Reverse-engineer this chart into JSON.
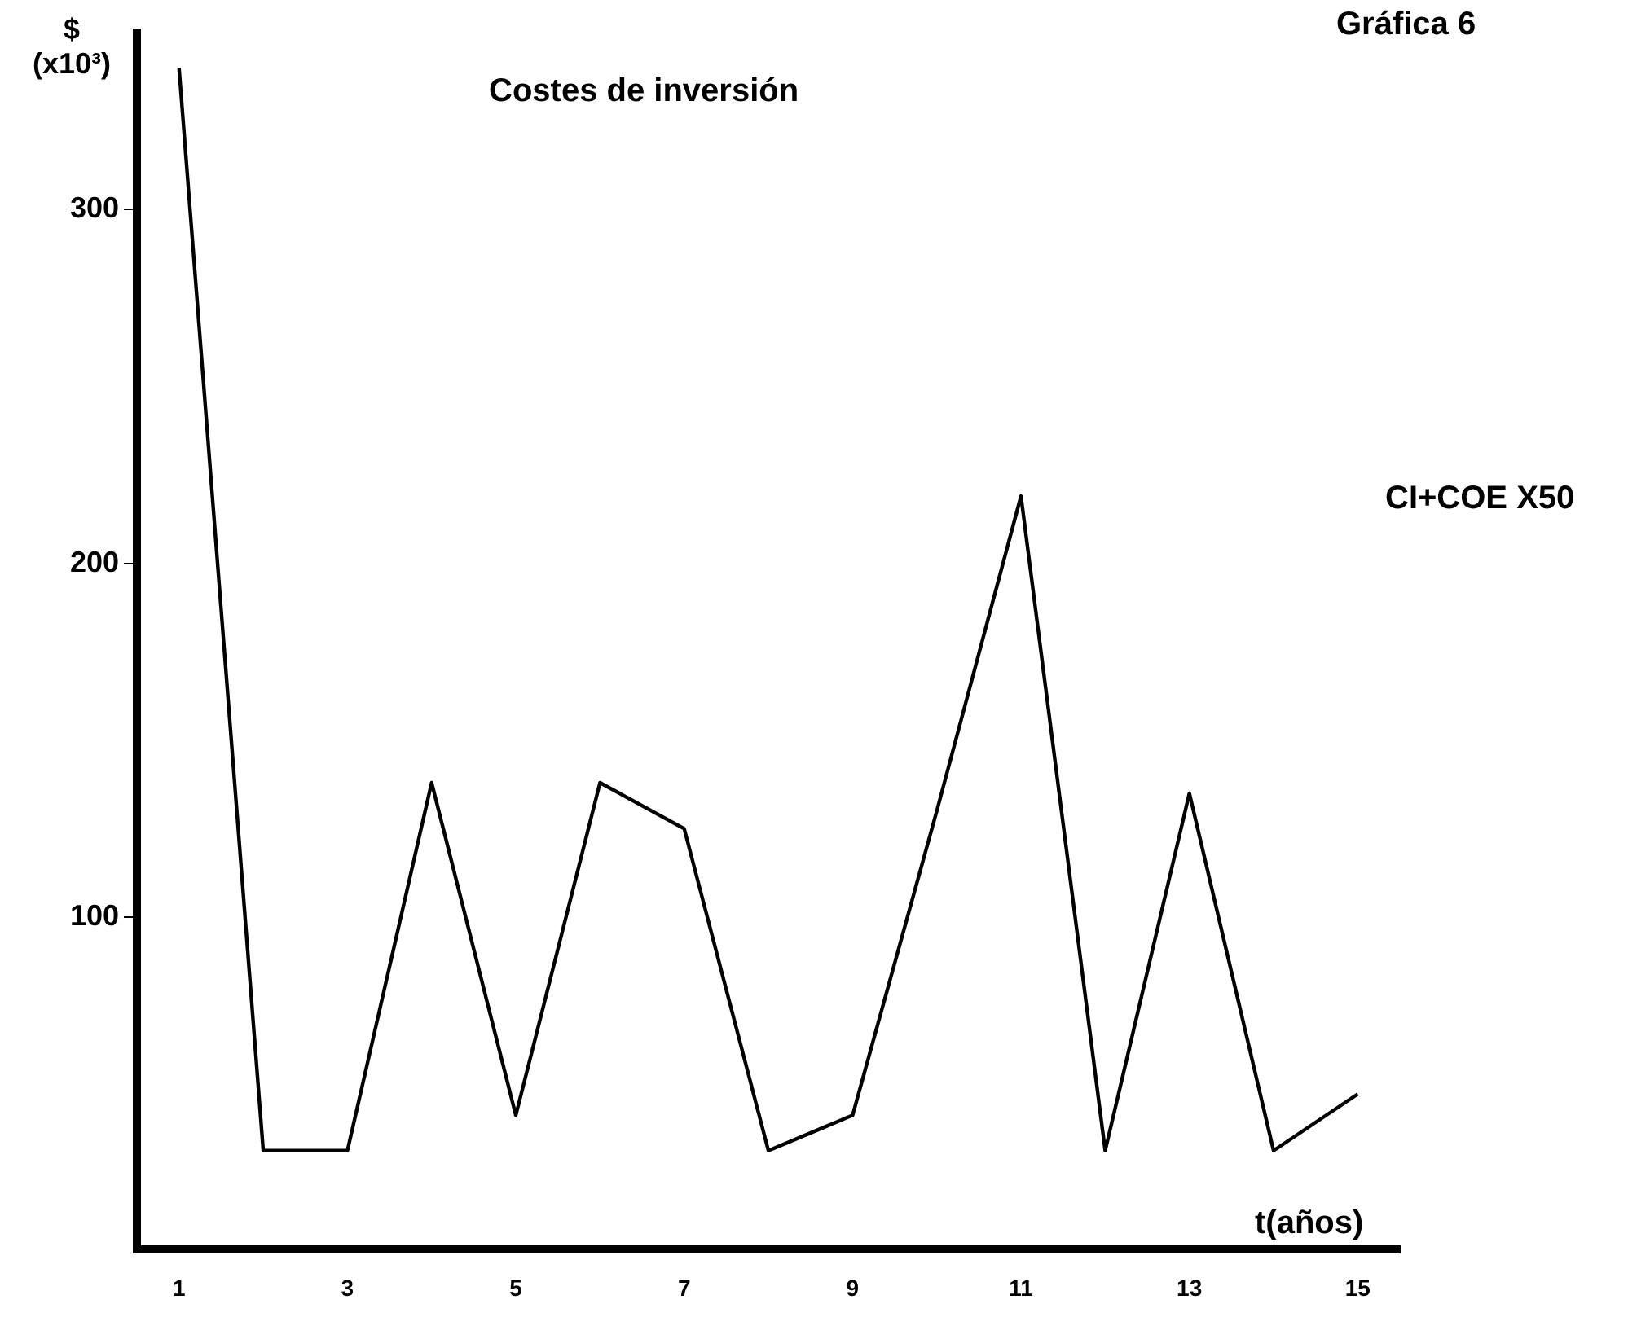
{
  "chart_data": {
    "type": "line",
    "title": "Costes de inversión",
    "ylabel": "$ (x10³)",
    "xlabel": "t(años)",
    "annotations": [
      "Gráfica 6",
      "CI+COE X50"
    ],
    "categories": [
      "1",
      null,
      "3",
      null,
      "5",
      null,
      "7",
      null,
      "9",
      null,
      "11",
      null,
      "13",
      null,
      "15"
    ],
    "series": [
      {
        "color": "#000000",
        "values": [
          340,
          34,
          34,
          138,
          44,
          138,
          125,
          34,
          44,
          130,
          219,
          34,
          135,
          34,
          50
        ]
      }
    ],
    "ylim": [
      6,
      350
    ],
    "yticks": [
      100,
      200,
      300
    ],
    "grid": false,
    "legend": false,
    "marker": "none",
    "line_style": "solid"
  }
}
